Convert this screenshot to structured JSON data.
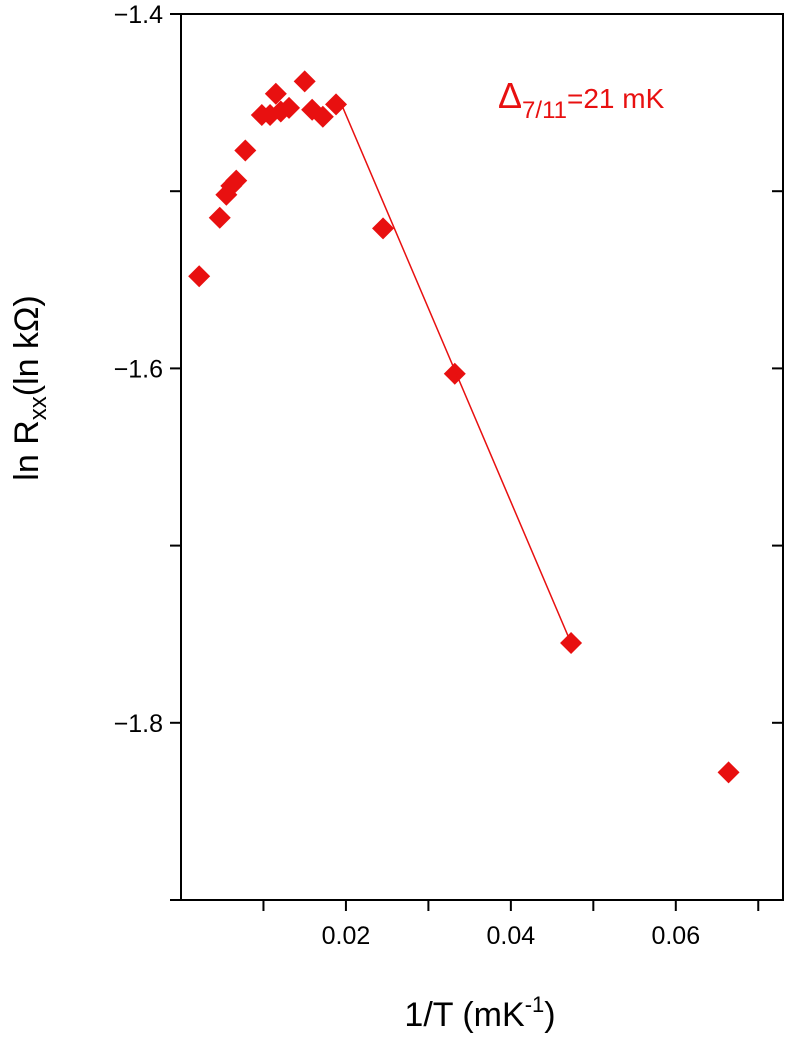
{
  "chart_data": {
    "type": "scatter",
    "annotation": {
      "symbol": "Δ",
      "subscript": "7/11",
      "text": "=21 mK",
      "color": "#e81010"
    },
    "x_label": {
      "text": "1/T (mK",
      "superscript": "-1",
      "suffix": ")"
    },
    "y_label": {
      "text": "ln R",
      "subscript": "xx",
      "suffix": "(ln kΩ)"
    },
    "xlim": [
      0,
      0.073
    ],
    "ylim": [
      -1.9,
      -1.4
    ],
    "xticks": [
      0.02,
      0.04,
      0.06
    ],
    "xticks_minor": [
      0.01,
      0.03,
      0.05,
      0.07
    ],
    "yticks": [
      {
        "value": -1.4,
        "label": "−1.4"
      },
      {
        "value": -1.6,
        "label": "−1.6"
      },
      {
        "value": -1.8,
        "label": "−1.8"
      }
    ],
    "yticks_minor": [
      -1.5,
      -1.7,
      -1.9
    ],
    "series": [
      {
        "color": "#e81010",
        "marker": "diamond",
        "x": [
          0.0022,
          0.0047,
          0.0055,
          0.0061,
          0.0067,
          0.0078,
          0.0098,
          0.0108,
          0.0115,
          0.0121,
          0.0131,
          0.015,
          0.0159,
          0.0172,
          0.0188,
          0.0245,
          0.0332,
          0.0473,
          0.0664
        ],
        "values": [
          -1.548,
          -1.515,
          -1.502,
          -1.497,
          -1.494,
          -1.477,
          -1.457,
          -1.457,
          -1.445,
          -1.455,
          -1.453,
          -1.438,
          -1.454,
          -1.458,
          -1.451,
          -1.521,
          -1.603,
          -1.755,
          -1.828
        ]
      },
      {
        "color": "#e81010",
        "marker": "line",
        "x": [
          0.0196,
          0.0473
        ],
        "values": [
          -1.4525,
          -1.755
        ]
      }
    ]
  }
}
